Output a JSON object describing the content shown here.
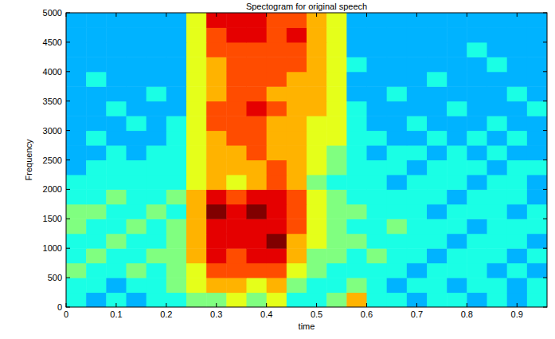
{
  "chart_data": {
    "type": "heatmap",
    "title": "Spectogram for original speech",
    "x_label": "time",
    "y_label": "Frequency",
    "xlim": [
      0,
      0.96
    ],
    "xticks": [
      0,
      0.1,
      0.2,
      0.3,
      0.4,
      0.5,
      0.6,
      0.7,
      0.8,
      0.9
    ],
    "ylim": [
      0,
      5000
    ],
    "yticks": [
      0,
      500,
      1000,
      1500,
      2000,
      2500,
      3000,
      3500,
      4000,
      4500,
      5000
    ],
    "x_edges": [
      0,
      0.04,
      0.08,
      0.12,
      0.16,
      0.2,
      0.24,
      0.28,
      0.32,
      0.36,
      0.4,
      0.44,
      0.48,
      0.52,
      0.56,
      0.6,
      0.64,
      0.68,
      0.72,
      0.76,
      0.8,
      0.84,
      0.88,
      0.92,
      0.96
    ],
    "y_edges": [
      0,
      250,
      500,
      750,
      1000,
      1250,
      1500,
      1750,
      2000,
      2250,
      2500,
      2750,
      3000,
      3250,
      3500,
      3750,
      4000,
      4250,
      4500,
      4750,
      5000
    ],
    "zlim": [
      0,
      10
    ],
    "cells": [
      [
        4,
        3,
        4,
        3,
        4,
        4,
        5,
        5,
        6,
        5,
        6,
        4,
        4,
        5,
        7,
        4,
        4,
        3,
        4,
        4,
        3,
        4,
        3,
        4
      ],
      [
        4,
        4,
        3,
        4,
        4,
        5,
        6,
        7,
        7,
        6,
        7,
        5,
        4,
        4,
        5,
        4,
        3,
        4,
        4,
        3,
        4,
        4,
        3,
        4
      ],
      [
        5,
        4,
        4,
        5,
        4,
        5,
        6,
        8,
        8,
        8,
        8,
        6,
        5,
        4,
        4,
        4,
        4,
        3,
        4,
        4,
        4,
        3,
        4,
        3
      ],
      [
        4,
        5,
        4,
        4,
        5,
        5,
        7,
        9,
        8,
        9,
        9,
        7,
        5,
        5,
        4,
        5,
        4,
        4,
        3,
        4,
        4,
        4,
        3,
        4
      ],
      [
        4,
        4,
        5,
        4,
        4,
        5,
        7,
        9,
        9,
        9,
        10,
        7,
        6,
        5,
        5,
        4,
        4,
        4,
        4,
        3,
        4,
        4,
        4,
        3
      ],
      [
        5,
        4,
        4,
        5,
        4,
        5,
        7,
        9,
        9,
        9,
        9,
        8,
        6,
        5,
        4,
        4,
        5,
        4,
        4,
        4,
        3,
        4,
        4,
        4
      ],
      [
        5,
        5,
        4,
        4,
        5,
        4,
        7,
        10,
        9,
        10,
        9,
        8,
        6,
        5,
        5,
        4,
        4,
        4,
        3,
        4,
        4,
        4,
        3,
        4
      ],
      [
        4,
        4,
        5,
        4,
        4,
        5,
        7,
        9,
        8,
        9,
        9,
        8,
        6,
        5,
        4,
        4,
        4,
        4,
        4,
        3,
        4,
        4,
        4,
        3
      ],
      [
        4,
        4,
        4,
        4,
        4,
        4,
        6,
        7,
        6,
        7,
        8,
        7,
        5,
        4,
        4,
        4,
        3,
        4,
        4,
        4,
        3,
        4,
        4,
        3
      ],
      [
        3,
        4,
        4,
        4,
        4,
        4,
        6,
        7,
        7,
        7,
        8,
        7,
        6,
        5,
        4,
        4,
        4,
        3,
        4,
        4,
        4,
        3,
        4,
        4
      ],
      [
        3,
        3,
        4,
        3,
        4,
        4,
        6,
        7,
        7,
        8,
        7,
        7,
        6,
        5,
        4,
        3,
        4,
        4,
        3,
        4,
        3,
        4,
        3,
        3
      ],
      [
        3,
        4,
        3,
        3,
        3,
        4,
        6,
        7,
        8,
        8,
        7,
        7,
        6,
        6,
        4,
        4,
        3,
        3,
        4,
        3,
        4,
        3,
        4,
        3
      ],
      [
        3,
        3,
        3,
        4,
        3,
        4,
        6,
        8,
        8,
        8,
        7,
        7,
        6,
        6,
        4,
        3,
        3,
        4,
        3,
        3,
        3,
        4,
        3,
        3
      ],
      [
        3,
        3,
        4,
        3,
        3,
        3,
        6,
        8,
        8,
        9,
        8,
        7,
        7,
        6,
        4,
        3,
        3,
        3,
        3,
        4,
        3,
        3,
        3,
        4
      ],
      [
        3,
        3,
        3,
        3,
        4,
        3,
        6,
        7,
        8,
        8,
        7,
        7,
        7,
        6,
        3,
        3,
        4,
        3,
        3,
        3,
        3,
        3,
        4,
        3
      ],
      [
        3,
        4,
        3,
        3,
        3,
        3,
        6,
        7,
        8,
        8,
        8,
        7,
        7,
        6,
        3,
        3,
        3,
        3,
        4,
        3,
        3,
        3,
        3,
        3
      ],
      [
        3,
        3,
        3,
        3,
        3,
        3,
        6,
        7,
        8,
        8,
        8,
        8,
        7,
        6,
        4,
        3,
        3,
        3,
        3,
        3,
        3,
        4,
        3,
        3
      ],
      [
        3,
        3,
        3,
        3,
        3,
        3,
        6,
        8,
        8,
        8,
        8,
        8,
        7,
        6,
        3,
        3,
        3,
        3,
        3,
        3,
        4,
        3,
        3,
        3
      ],
      [
        3,
        3,
        3,
        3,
        3,
        3,
        6,
        8,
        9,
        9,
        8,
        9,
        7,
        6,
        3,
        3,
        3,
        3,
        3,
        3,
        3,
        3,
        3,
        3
      ],
      [
        3,
        3,
        3,
        3,
        3,
        3,
        6,
        9,
        9,
        9,
        8,
        8,
        7,
        6,
        3,
        3,
        3,
        3,
        3,
        3,
        3,
        3,
        3,
        3
      ]
    ]
  }
}
